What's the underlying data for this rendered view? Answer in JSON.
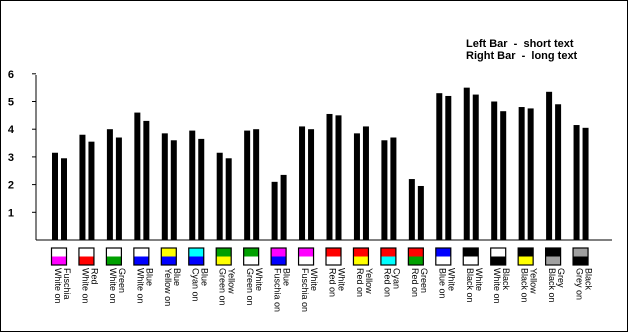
{
  "chart_data": {
    "type": "bar",
    "categories": [
      "White on Fuschia",
      "White on Red",
      "White on Green",
      "White on Blue",
      "Yellow on Blue",
      "Cyan on Blue",
      "Green on Yellow",
      "Green on White",
      "Fuschia on Blue",
      "Fuschia on White",
      "Red on White",
      "Red on Yellow",
      "Red on Cyan",
      "Red on Green",
      "Blue on White",
      "Black on White",
      "White on Black",
      "Black on Yellow",
      "Black on Grey",
      "Grey on Black"
    ],
    "swatches": [
      [
        "#ffffff",
        "#ff00ff"
      ],
      [
        "#ffffff",
        "#ff0000"
      ],
      [
        "#ffffff",
        "#00a000"
      ],
      [
        "#ffffff",
        "#0000ff"
      ],
      [
        "#ffff00",
        "#0000ff"
      ],
      [
        "#00ffff",
        "#0000ff"
      ],
      [
        "#00a000",
        "#ffff00"
      ],
      [
        "#00a000",
        "#ffffff"
      ],
      [
        "#ff00ff",
        "#0000ff"
      ],
      [
        "#ff00ff",
        "#ffffff"
      ],
      [
        "#ff0000",
        "#ffffff"
      ],
      [
        "#ff0000",
        "#ffff00"
      ],
      [
        "#ff0000",
        "#00ffff"
      ],
      [
        "#ff0000",
        "#00a000"
      ],
      [
        "#0000ff",
        "#ffffff"
      ],
      [
        "#000000",
        "#ffffff"
      ],
      [
        "#ffffff",
        "#000000"
      ],
      [
        "#000000",
        "#ffff00"
      ],
      [
        "#000000",
        "#a0a0a0"
      ],
      [
        "#a0a0a0",
        "#000000"
      ]
    ],
    "series": [
      {
        "name": "Left Bar - short text",
        "values": [
          3.15,
          3.8,
          4.0,
          4.6,
          3.85,
          3.95,
          3.15,
          3.95,
          2.1,
          4.1,
          4.55,
          3.85,
          3.6,
          2.2,
          5.3,
          5.5,
          5.0,
          4.8,
          5.35,
          4.15
        ]
      },
      {
        "name": "Right Bar - long text",
        "values": [
          2.95,
          3.55,
          3.7,
          4.3,
          3.6,
          3.65,
          2.95,
          4.0,
          2.35,
          4.0,
          4.5,
          4.1,
          3.7,
          1.95,
          5.2,
          5.25,
          4.65,
          4.75,
          4.9,
          4.05
        ]
      }
    ],
    "yticks": [
      "1",
      "2",
      "3",
      "4",
      "5",
      "6"
    ],
    "ylim": [
      0,
      6
    ],
    "legend": {
      "line1": "Left Bar  -  short text",
      "line2": "Right Bar  -  long text",
      "placement": "top-right"
    },
    "grid": false
  }
}
